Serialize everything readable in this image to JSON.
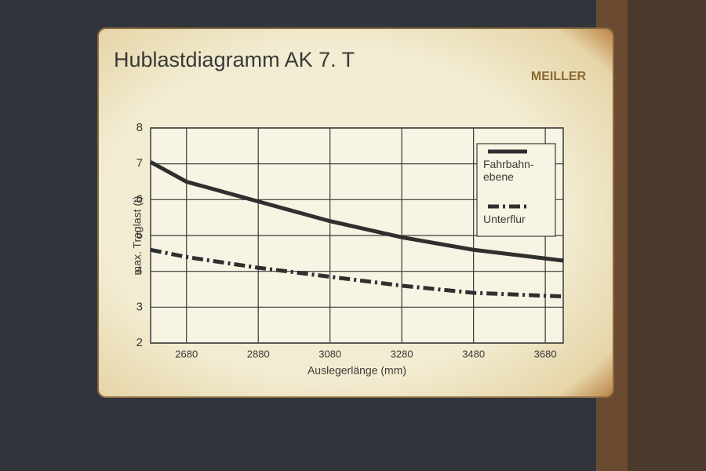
{
  "chart_data": {
    "type": "line",
    "title": "Hublastdiagramm AK 7. T",
    "logo_text": "MEILLER",
    "x_label": "Auslegerlänge (mm)",
    "y_label": "max. Traglast (t)",
    "x": [
      2580,
      2680,
      2880,
      3080,
      3280,
      3480,
      3730
    ],
    "series": [
      {
        "name": "Fahrbahn-\nebene",
        "color": "#2f2f2f",
        "line_style": "solid",
        "values": [
          7.05,
          6.5,
          5.95,
          5.4,
          4.95,
          4.6,
          4.3
        ]
      },
      {
        "name": "Unterflur",
        "color": "#2f2f2f",
        "line_style": "dashdot",
        "values": [
          4.6,
          4.4,
          4.1,
          3.85,
          3.6,
          3.4,
          3.3
        ]
      }
    ],
    "xlim": [
      2580,
      3730
    ],
    "xticks": [
      2680,
      2880,
      3080,
      3280,
      3480,
      3680
    ],
    "ylim": [
      2,
      8
    ],
    "yticks": [
      2,
      3,
      4,
      5,
      6,
      7,
      8
    ],
    "grid": true,
    "legend_position": "upper right"
  }
}
